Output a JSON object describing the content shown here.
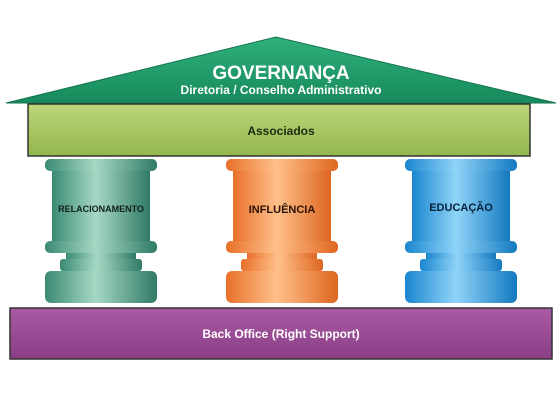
{
  "roof": {
    "title": "GOVERNANÇA",
    "subtitle": "Diretoria / Conselho Administrativo",
    "color": "#1f9a6a"
  },
  "beam": {
    "label": "Associados",
    "color": "#a8c862"
  },
  "pillars": [
    {
      "label": "RELACIONAMENTO",
      "color": "#3f8f7a",
      "light": "#a6d8c4"
    },
    {
      "label": "INFLUÊNCIA",
      "color": "#ef7a2e",
      "light": "#ffc08a"
    },
    {
      "label": "EDUCAÇÃO",
      "color": "#1f8fd6",
      "light": "#8fd4f8"
    }
  ],
  "base": {
    "label": "Back Office (Right Support)",
    "color": "#9b4b95"
  }
}
